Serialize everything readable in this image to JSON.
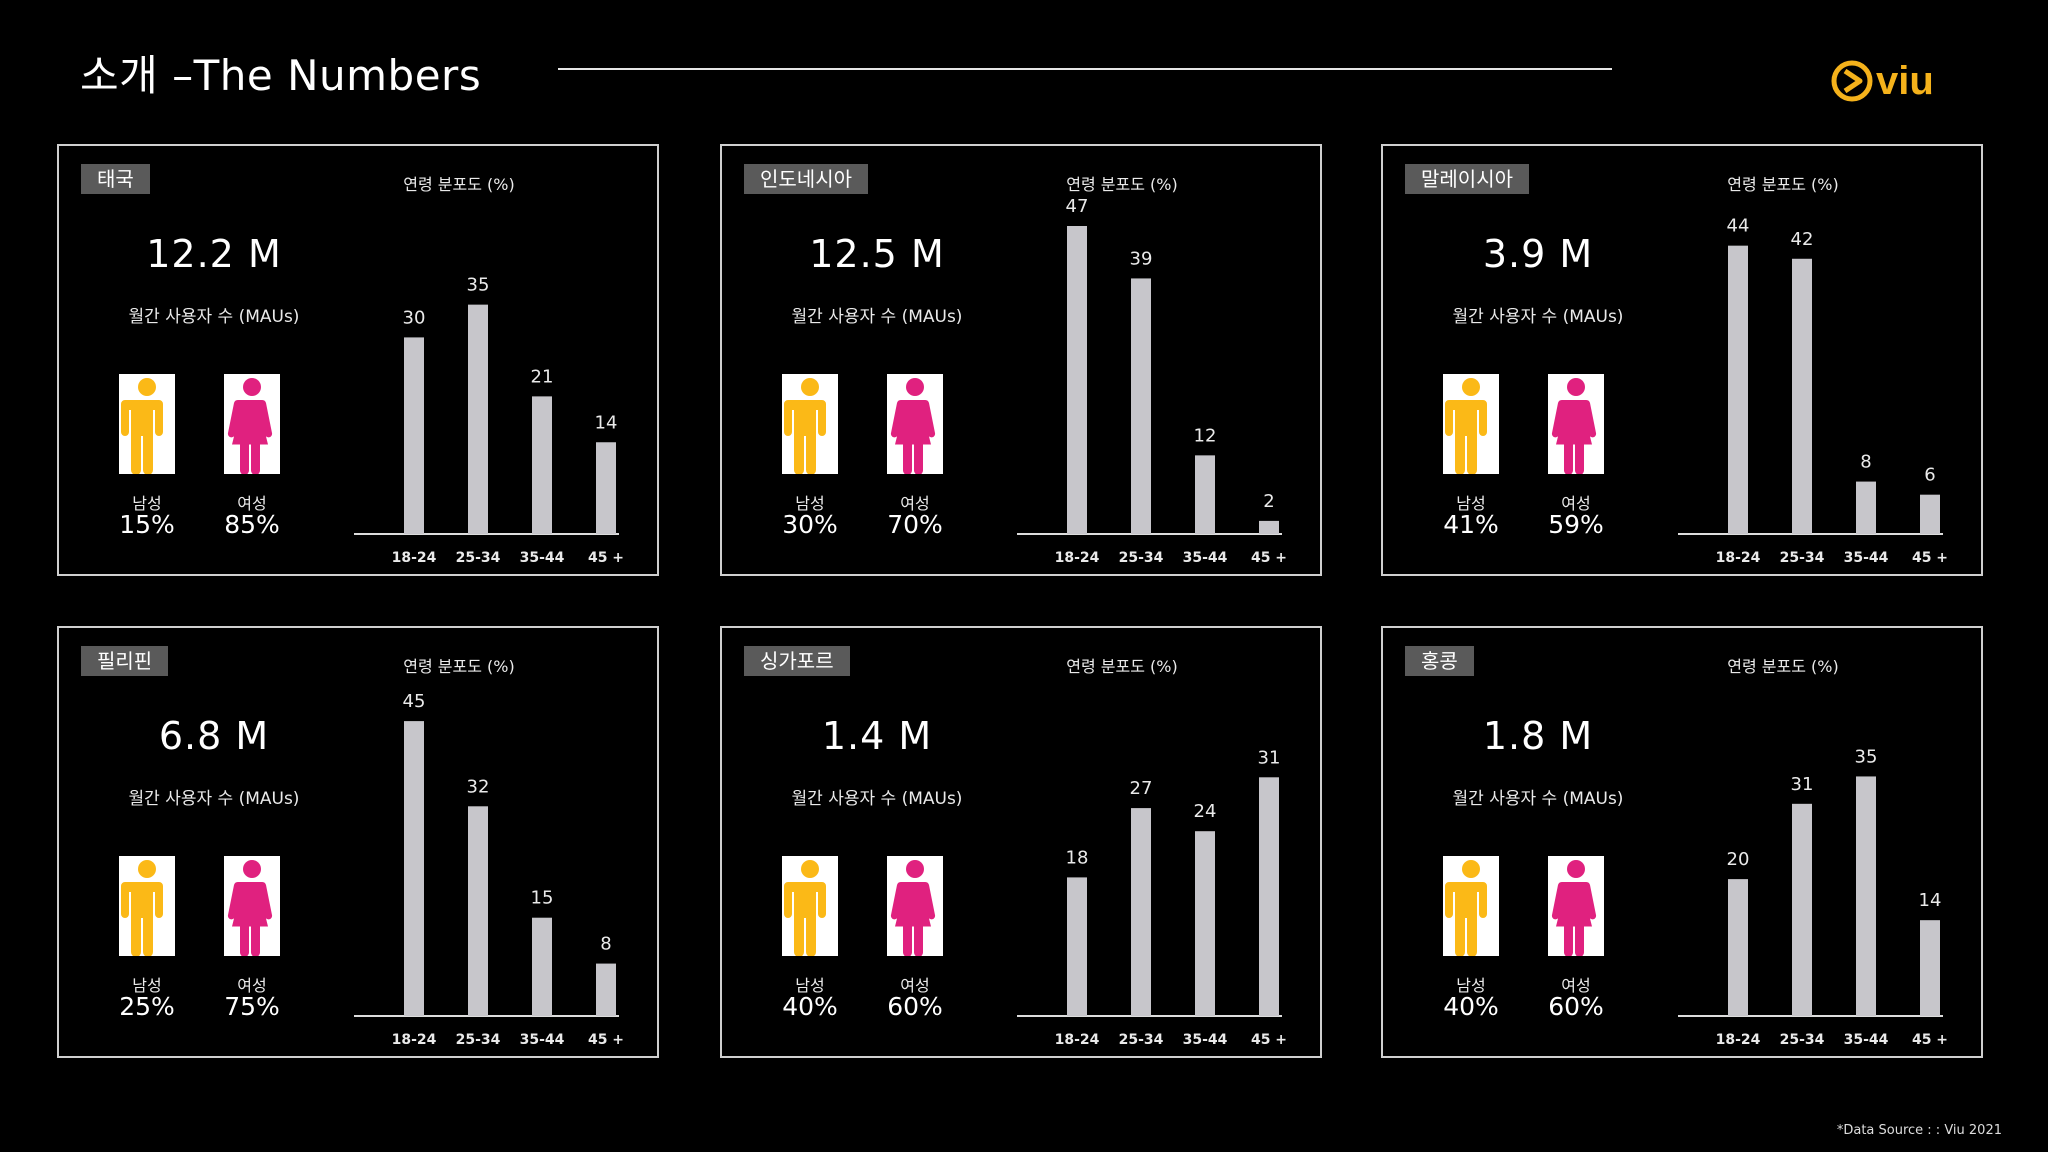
{
  "header": {
    "title": "소개 –The Numbers",
    "brand": "viu"
  },
  "colors": {
    "background": "#000000",
    "bar": "#c7c6cb",
    "male": "#fbb917",
    "female": "#e0217f",
    "brand": "#f5b21b"
  },
  "icons": {
    "male": "male-person-icon",
    "female": "female-person-icon"
  },
  "chart_data": [
    {
      "type": "bar",
      "country": "태국",
      "mau": "12.2 M",
      "mau_label": "월간 사용자 수 (MAUs)",
      "title": "연령 분포도 (%)",
      "male_label": "남성",
      "female_label": "여성",
      "male_share": "15%",
      "female_share": "85%",
      "categories": [
        "18-24",
        "25-34",
        "35-44",
        "45 +"
      ],
      "values": [
        30,
        35,
        21,
        14
      ],
      "value_labels": [
        "30",
        "35",
        "21",
        "14"
      ],
      "ylim": [
        0,
        47
      ]
    },
    {
      "type": "bar",
      "country": "인도네시아",
      "mau": "12.5  M",
      "mau_label": "월간 사용자 수 (MAUs)",
      "title": "연령 분포도 (%)",
      "male_label": "남성",
      "female_label": "여성",
      "male_share": "30%",
      "female_share": "70%",
      "categories": [
        "18-24",
        "25-34",
        "35-44",
        "45 +"
      ],
      "values": [
        47,
        39,
        12,
        2
      ],
      "value_labels": [
        "47",
        "39",
        "12",
        "2"
      ],
      "ylim": [
        0,
        47
      ]
    },
    {
      "type": "bar",
      "country": "말레이시아",
      "mau": "3.9 M",
      "mau_label": "월간 사용자 수 (MAUs)",
      "title": "연령 분포도 (%)",
      "male_label": "남성",
      "female_label": "여성",
      "male_share": "41%",
      "female_share": "59%",
      "categories": [
        "18-24",
        "25-34",
        "35-44",
        "45 +"
      ],
      "values": [
        44,
        42,
        8,
        6
      ],
      "value_labels": [
        "44",
        "42",
        "8",
        "6"
      ],
      "ylim": [
        0,
        47
      ]
    },
    {
      "type": "bar",
      "country": "필리핀",
      "mau": "6.8 M",
      "mau_label": "월간 사용자 수 (MAUs)",
      "title": "연령 분포도 (%)",
      "male_label": "남성",
      "female_label": "여성",
      "male_share": "25%",
      "female_share": "75%",
      "categories": [
        "18-24",
        "25-34",
        "35-44",
        "45 +"
      ],
      "values": [
        45,
        32,
        15,
        8
      ],
      "value_labels": [
        "45",
        "32",
        "15",
        "8"
      ],
      "ylim": [
        0,
        47
      ]
    },
    {
      "type": "bar",
      "country": "싱가포르",
      "mau": "1.4 M",
      "mau_label": "월간 사용자 수 (MAUs)",
      "title": "연령 분포도 (%)",
      "male_label": "남성",
      "female_label": "여성",
      "male_share": "40%",
      "female_share": "60%",
      "categories": [
        "18-24",
        "25-34",
        "35-44",
        "45 +"
      ],
      "values": [
        18,
        27,
        24,
        31
      ],
      "value_labels": [
        "18",
        "27",
        "24",
        "31"
      ],
      "ylim": [
        0,
        40
      ]
    },
    {
      "type": "bar",
      "country": "홍콩",
      "mau": "1.8 M",
      "mau_label": "월간 사용자 수 (MAUs)",
      "title": "연령 분포도 (%)",
      "male_label": "남성",
      "female_label": "여성",
      "male_share": "40%",
      "female_share": "60%",
      "categories": [
        "18-24",
        "25-34",
        "35-44",
        "45 +"
      ],
      "values": [
        20,
        31,
        35,
        14
      ],
      "value_labels": [
        "20",
        "31",
        "35",
        "14"
      ],
      "ylim": [
        0,
        45
      ]
    }
  ],
  "footer": {
    "source": "*Data Source : : Viu 2021"
  }
}
